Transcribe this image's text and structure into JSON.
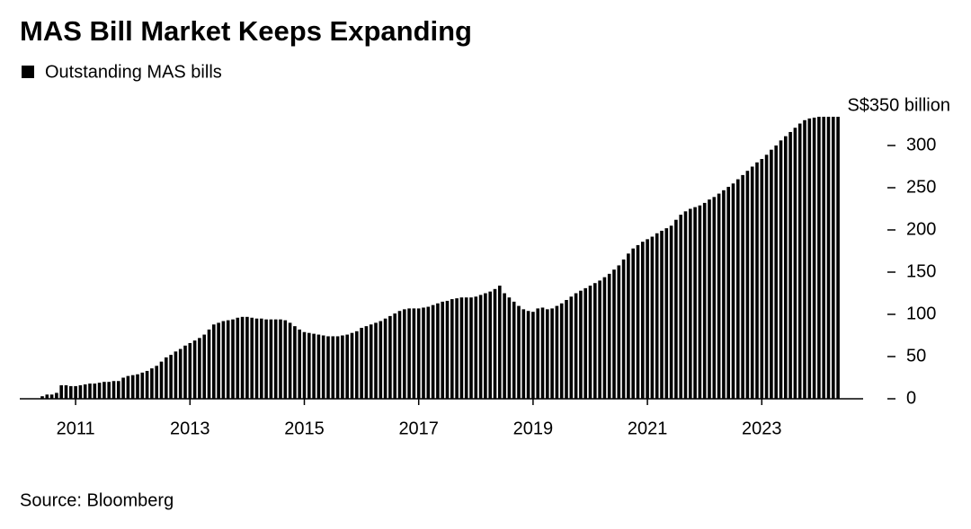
{
  "chart_data": {
    "type": "bar",
    "title": "MAS Bill Market Keeps Expanding",
    "source": "Source: Bloomberg",
    "series": [
      {
        "name": "Outstanding MAS bills",
        "color": "#000000",
        "values": [
          3,
          5,
          5,
          7,
          16,
          16,
          15,
          15,
          16,
          17,
          18,
          18,
          19,
          20,
          20,
          21,
          21,
          25,
          27,
          28,
          29,
          31,
          33,
          36,
          39,
          44,
          49,
          52,
          56,
          59,
          63,
          66,
          69,
          72,
          76,
          82,
          88,
          90,
          92,
          93,
          94,
          96,
          97,
          97,
          96,
          95,
          95,
          94,
          94,
          94,
          94,
          93,
          90,
          86,
          82,
          79,
          78,
          77,
          76,
          75,
          74,
          74,
          74,
          75,
          76,
          78,
          80,
          84,
          86,
          88,
          90,
          92,
          95,
          98,
          101,
          104,
          106,
          107,
          107,
          107,
          108,
          109,
          111,
          113,
          115,
          116,
          118,
          119,
          120,
          120,
          120,
          121,
          123,
          125,
          127,
          130,
          134,
          125,
          120,
          115,
          110,
          106,
          104,
          103,
          107,
          108,
          106,
          107,
          110,
          113,
          117,
          121,
          125,
          128,
          131,
          134,
          137,
          140,
          144,
          148,
          153,
          158,
          165,
          172,
          178,
          182,
          186,
          189,
          192,
          196,
          199,
          202,
          205,
          212,
          218,
          222,
          225,
          227,
          229,
          232,
          236,
          239,
          243,
          247,
          251,
          255,
          260,
          265,
          270,
          275,
          280,
          284,
          289,
          295,
          300,
          306,
          311,
          316,
          321,
          326,
          330,
          332,
          333,
          334,
          334,
          334,
          334,
          334
        ]
      }
    ],
    "categories": [
      null,
      null,
      null,
      null,
      null,
      null,
      null,
      "2011",
      null,
      null,
      null,
      null,
      null,
      null,
      null,
      null,
      null,
      null,
      null,
      null,
      null,
      null,
      null,
      null,
      null,
      null,
      null,
      null,
      null,
      null,
      null,
      "2013",
      null,
      null,
      null,
      null,
      null,
      null,
      null,
      null,
      null,
      null,
      null,
      null,
      null,
      null,
      null,
      null,
      null,
      null,
      null,
      null,
      null,
      null,
      null,
      "2015",
      null,
      null,
      null,
      null,
      null,
      null,
      null,
      null,
      null,
      null,
      null,
      null,
      null,
      null,
      null,
      null,
      null,
      null,
      null,
      null,
      null,
      null,
      null,
      "2017",
      null,
      null,
      null,
      null,
      null,
      null,
      null,
      null,
      null,
      null,
      null,
      null,
      null,
      null,
      null,
      null,
      null,
      null,
      null,
      null,
      null,
      null,
      null,
      "2019",
      null,
      null,
      null,
      null,
      null,
      null,
      null,
      null,
      null,
      null,
      null,
      null,
      null,
      null,
      null,
      null,
      null,
      null,
      null,
      null,
      null,
      null,
      null,
      "2021",
      null,
      null,
      null,
      null,
      null,
      null,
      null,
      null,
      null,
      null,
      null,
      null,
      null,
      null,
      null,
      null,
      null,
      null,
      null,
      null,
      null,
      null,
      null,
      "2023",
      null,
      null,
      null,
      null,
      null,
      null,
      null,
      null,
      null,
      null,
      null,
      null,
      null,
      null,
      null,
      null
    ],
    "ylim": [
      0,
      350
    ],
    "yticks": [
      0,
      50,
      100,
      150,
      200,
      250,
      300,
      {
        "value": 350,
        "label": "S$350 billion"
      }
    ],
    "legend": "top-left"
  }
}
